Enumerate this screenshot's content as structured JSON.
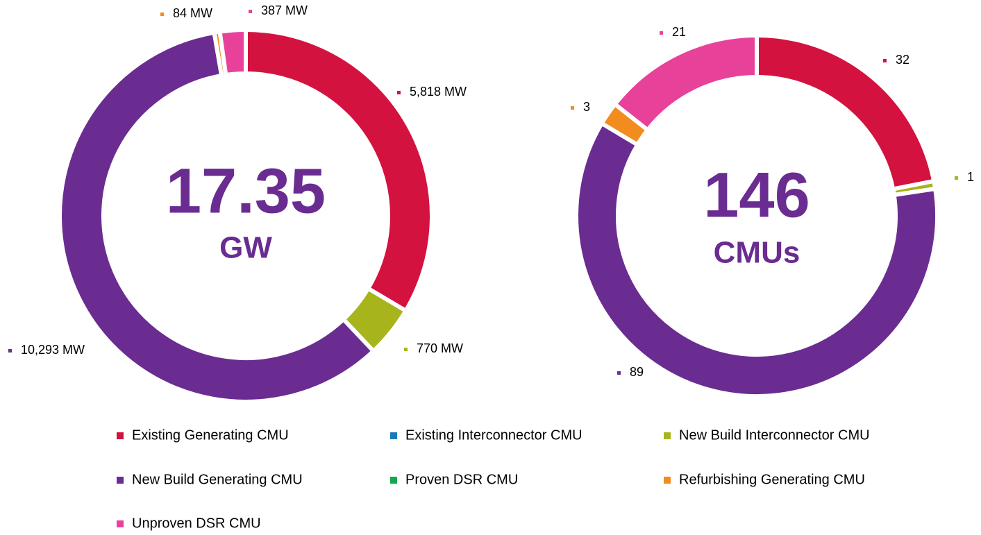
{
  "chart_data": [
    {
      "type": "pie",
      "center_value": "17.35",
      "center_unit": "GW",
      "values": [
        5818,
        770,
        10293,
        84,
        387
      ],
      "value_labels": [
        "5,818 MW",
        "770 MW",
        "10,293 MW",
        "84 MW",
        "387 MW"
      ],
      "colors": [
        "#d4123f",
        "#a8b41c",
        "#6a2c91",
        "#f28c1e",
        "#e8419a"
      ]
    },
    {
      "type": "pie",
      "center_value": "146",
      "center_unit": "CMUs",
      "values": [
        32,
        1,
        89,
        3,
        21
      ],
      "value_labels": [
        "32",
        "1",
        "89",
        "3",
        "21"
      ],
      "colors": [
        "#d4123f",
        "#a8b41c",
        "#6a2c91",
        "#f28c1e",
        "#e8419a"
      ]
    }
  ],
  "legend": [
    {
      "name": "Existing Generating CMU",
      "color": "#d4123f"
    },
    {
      "name": "Existing Interconnector CMU",
      "color": "#1a7ab8"
    },
    {
      "name": "New Build Interconnector CMU",
      "color": "#a8b41c"
    },
    {
      "name": "New Build Generating CMU",
      "color": "#6a2c91"
    },
    {
      "name": "Proven DSR CMU",
      "color": "#12a84b"
    },
    {
      "name": "Refurbishing Generating CMU",
      "color": "#f28c1e"
    },
    {
      "name": "Unproven DSR CMU",
      "color": "#e8419a"
    }
  ]
}
